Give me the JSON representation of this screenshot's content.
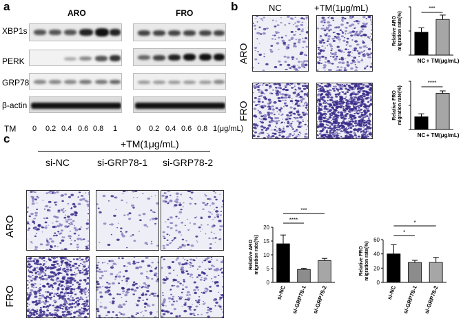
{
  "panel_a": {
    "letter": "a",
    "group_left": "ARO",
    "group_right": "FRO",
    "rows": [
      "XBP1s",
      "PERK",
      "GRP78",
      "β-actin"
    ],
    "tm_label": "TM",
    "tm_left": [
      "0",
      "0.2",
      "0.4",
      "0.6",
      "0.8",
      "1"
    ],
    "tm_right": [
      "0",
      "0.2",
      "0.4",
      "0.6",
      "0.8",
      "1(μg/mL)"
    ]
  },
  "panel_b": {
    "letter": "b",
    "col_nc": "NC",
    "col_tm": "+TM(1μg/mL)",
    "row_aro": "ARO",
    "row_fro": "FRO",
    "chart_aro": {
      "ylabel1": "Relative ARO",
      "ylabel2": "migration rate(%)",
      "sig": "***",
      "cats": [
        "NC",
        "+ TM(μg/mL)"
      ]
    },
    "chart_fro": {
      "ylabel1": "Relative FRO",
      "ylabel2": "migration rate(%)",
      "sig": "****",
      "cats": [
        "NC",
        "+ TM(μg/mL)"
      ]
    }
  },
  "panel_c": {
    "letter": "c",
    "treatment": "+TM(1μg/mL)",
    "cols": [
      "si-NC",
      "si-GRP78-1",
      "si-GRP78-2"
    ],
    "row_aro": "ARO",
    "row_fro": "FRO"
  },
  "chart_data": [
    {
      "type": "bar",
      "id": "b-aro",
      "categories": [
        "NC",
        "+ TM(μg/mL)"
      ],
      "values": [
        9.5,
        14.8
      ],
      "errors": [
        1.8,
        1.8
      ],
      "ylabel": "Relative ARO migration rate(%)",
      "ylim": [
        0,
        20
      ],
      "colors": [
        "#000000",
        "#a6a6a6"
      ],
      "sig": "***"
    },
    {
      "type": "bar",
      "id": "b-fro",
      "categories": [
        "NC",
        "+ TM(μg/mL)"
      ],
      "values": [
        21,
        60
      ],
      "errors": [
        5,
        4
      ],
      "ylabel": "Relative FRO migration rate(%)",
      "ylim": [
        0,
        80
      ],
      "colors": [
        "#000000",
        "#a6a6a6"
      ],
      "sig": "****"
    },
    {
      "type": "bar",
      "id": "c-aro",
      "categories": [
        "si-NC",
        "si-GRP78-1",
        "si-GRP78-2"
      ],
      "values": [
        14,
        4.7,
        7.9
      ],
      "errors": [
        3.2,
        0.4,
        0.8
      ],
      "ylabel": "Relative ARO migration rate(%)",
      "ylim": [
        0,
        20
      ],
      "yticks": [
        "0",
        "5",
        "10",
        "15",
        "20"
      ],
      "colors": [
        "#000000",
        "#8c8c8c",
        "#a6a6a6"
      ],
      "sig": [
        "****",
        "***"
      ]
    },
    {
      "type": "bar",
      "id": "c-fro",
      "categories": [
        "si-NC",
        "si-GRP78-1",
        "si-GRP78-2"
      ],
      "values": [
        40,
        28,
        28
      ],
      "errors": [
        13,
        3,
        7
      ],
      "ylabel": "Relative FRO migration rate(%)",
      "ylim": [
        0,
        60
      ],
      "yticks": [
        "0",
        "20",
        "40",
        "60"
      ],
      "colors": [
        "#000000",
        "#8c8c8c",
        "#a6a6a6"
      ],
      "sig": [
        "*",
        "*"
      ]
    }
  ]
}
